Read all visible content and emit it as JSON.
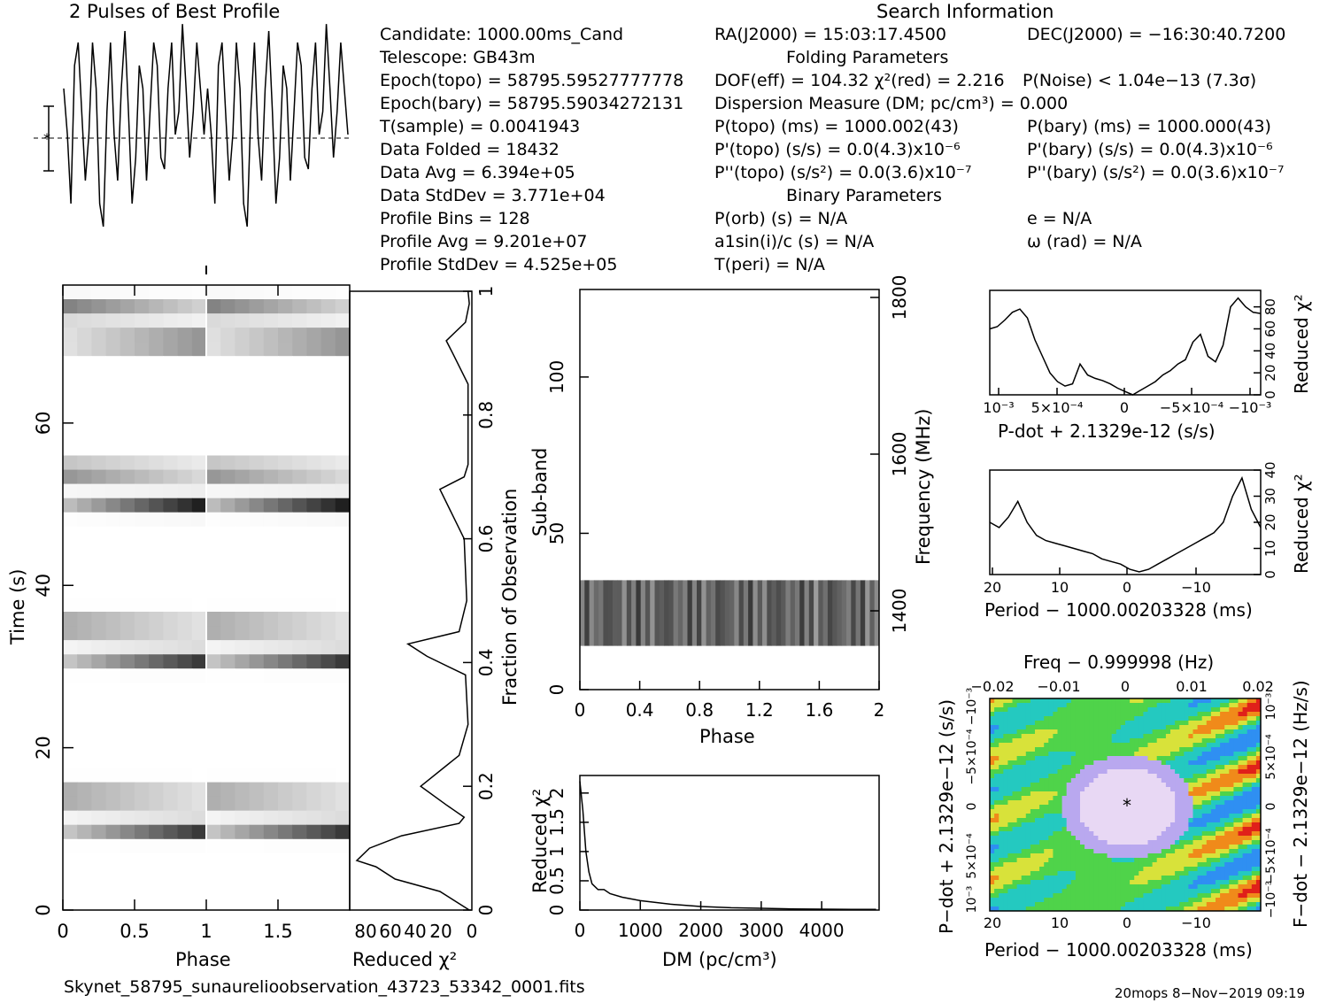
{
  "profile_title": "2 Pulses of Best Profile",
  "search_title": "Search Information",
  "info_left": [
    "Candidate:  1000.00ms_Cand",
    "Telescope:  GB43m",
    "Epoch(topo) = 58795.59527777778",
    "Epoch(bary) = 58795.59034272131",
    "T(sample)        =  0.0041943",
    "Data Folded      =  18432",
    "Data Avg         =  6.394e+05",
    "Data StdDev      =  3.771e+04",
    "Profile Bins     =  128",
    "Profile Avg      =  9.201e+07",
    "Profile StdDev   =  4.525e+05"
  ],
  "info_mid": [
    "RA(J2000) = 15:03:17.4500",
    "Folding Parameters",
    "DOF(eff) = 104.32   χ²(red) = 2.216",
    "Dispersion Measure (DM; pc/cm³) = 0.000",
    "P(topo) (ms) =  1000.002(43)",
    "P'(topo) (s/s) = 0.0(4.3)x10⁻⁶",
    "P''(topo) (s/s²) = 0.0(3.6)x10⁻⁷",
    "Binary Parameters",
    "P(orb) (s) = N/A",
    "a1sin(i)/c (s) = N/A",
    "T(peri) = N/A"
  ],
  "info_right": [
    "DEC(J2000) = −16:30:40.7200",
    "P(Noise) < 1.04e−13  (7.3σ)",
    "P(bary) (ms) =  1000.000(43)",
    "P'(bary) (s/s) = 0.0(4.3)x10⁻⁶",
    "P''(bary) (s/s²) = 0.0(3.6)x10⁻⁷",
    "e = N/A",
    "ω (rad) = N/A"
  ],
  "footer_file": "Skynet_58795_sunaurelioobservation_43723_53342_0001.fits",
  "footer_credit": "20mops  8−Nov−2019 09:19",
  "colors": {
    "ink": "#000000",
    "gray_dark": "#202020"
  },
  "chart_data": [
    {
      "type": "line",
      "name_hint": "profile",
      "title": "2 Pulses of Best Profile",
      "x": "phase 0-2",
      "y_note": "normalized profile intensity",
      "values": [
        0.7,
        0.5,
        0.2,
        0.8,
        0.9,
        0.6,
        0.3,
        0.5,
        0.9,
        0.7,
        0.2,
        0.1,
        0.6,
        0.9,
        0.5,
        0.3,
        0.7,
        0.95,
        0.6,
        0.2,
        0.4,
        0.8,
        0.7,
        0.3,
        0.6,
        0.9,
        0.8,
        0.4,
        0.35,
        0.7,
        0.9,
        0.5,
        0.6,
        0.98,
        0.7,
        0.4,
        0.6,
        0.9,
        0.7,
        0.5
      ]
    },
    {
      "type": "heatmap",
      "title": "",
      "xlabel": "Phase",
      "ylabel": "Time (s)",
      "xticks": [
        "0",
        "0.5",
        "1",
        "1.5"
      ],
      "yticks": [
        "0",
        "20",
        "40",
        "60"
      ],
      "xlim": [
        0,
        2
      ],
      "ylim": [
        0,
        77
      ],
      "pulses": [
        {
          "time_center": 12.5,
          "phase": 0.1
        },
        {
          "time_center": 33.5,
          "phase": 0.2
        },
        {
          "time_center": 52.5,
          "phase": 0.2
        },
        {
          "time_center": 72.5,
          "phase": 0.15
        }
      ]
    },
    {
      "type": "line",
      "title": "",
      "xlabel": "Reduced χ²",
      "ylabel": "Fraction of Observation",
      "xticks": [
        "80",
        "60",
        "40",
        "20",
        "0"
      ],
      "yticks": [
        "0",
        "0.2",
        "0.4",
        "0.6",
        "0.8",
        "1"
      ],
      "x": [
        2,
        25,
        60,
        75,
        90,
        80,
        55,
        10,
        6,
        20,
        40,
        10,
        3,
        5,
        35,
        50,
        10,
        4,
        6,
        25,
        6,
        3,
        3,
        15,
        20,
        5,
        2,
        3
      ],
      "y": [
        0,
        0.03,
        0.05,
        0.07,
        0.08,
        0.1,
        0.12,
        0.14,
        0.15,
        0.17,
        0.2,
        0.25,
        0.3,
        0.38,
        0.41,
        0.43,
        0.45,
        0.5,
        0.6,
        0.68,
        0.7,
        0.72,
        0.85,
        0.9,
        0.92,
        0.95,
        0.98,
        1.0
      ]
    },
    {
      "type": "heatmap",
      "title": "",
      "xlabel": "Phase",
      "ylabel": "Sub-band",
      "right_label": "Frequency (MHz)",
      "xticks": [
        "0",
        "0.4",
        "0.8",
        "1.2",
        "1.6",
        "2"
      ],
      "yticks": [
        "0",
        "50",
        "100"
      ],
      "right_ticks": [
        "1400",
        "1600",
        "1800"
      ],
      "xlim": [
        0,
        2
      ],
      "ylim": [
        0,
        128
      ],
      "band_rows": [
        14,
        35
      ]
    },
    {
      "type": "line",
      "title": "",
      "xlabel": "DM (pc/cm³)",
      "ylabel": "Reduced χ²",
      "xticks": [
        "0",
        "1000",
        "2000",
        "3000",
        "4000"
      ],
      "yticks": [
        "0",
        "0.5",
        "1",
        "1.5",
        "2"
      ],
      "x": [
        0,
        50,
        100,
        150,
        200,
        300,
        400,
        500,
        700,
        1000,
        1500,
        2000,
        2500,
        3000,
        3500,
        4000,
        4500,
        4900
      ],
      "y": [
        2.2,
        1.7,
        1.0,
        0.65,
        0.45,
        0.35,
        0.35,
        0.28,
        0.22,
        0.16,
        0.1,
        0.06,
        0.04,
        0.03,
        0.02,
        0.015,
        0.01,
        0.01
      ]
    },
    {
      "type": "line",
      "title": "",
      "xlabel": "P-dot + 2.1329e-12 (s/s)",
      "ylabel": "Reduced χ²",
      "xticks": [
        "10⁻³",
        "5×10⁻⁴",
        "0",
        "−5×10⁻⁴",
        "−10⁻³"
      ],
      "yticks": [
        "0",
        "20",
        "40",
        "60",
        "80"
      ],
      "values": [
        60,
        62,
        68,
        75,
        78,
        70,
        50,
        35,
        20,
        12,
        8,
        10,
        28,
        18,
        15,
        13,
        10,
        6,
        3,
        0,
        4,
        8,
        12,
        18,
        22,
        28,
        32,
        48,
        55,
        35,
        30,
        45,
        80,
        88,
        80,
        75,
        74
      ]
    },
    {
      "type": "line",
      "title": "",
      "xlabel": "Period − 1000.00203328 (ms)",
      "ylabel": "Reduced χ²",
      "xticks": [
        "20",
        "10",
        "0",
        "−10"
      ],
      "yticks": [
        "0",
        "10",
        "20",
        "30",
        "40"
      ],
      "values": [
        20,
        18,
        22,
        28,
        20,
        15,
        13,
        12,
        11,
        10,
        9,
        8,
        6,
        5,
        4,
        2,
        1,
        2,
        4,
        6,
        8,
        10,
        12,
        14,
        16,
        20,
        30,
        37,
        25,
        18
      ]
    },
    {
      "type": "heatmap",
      "title": "Freq − 0.999998 (Hz)",
      "xlabel": "Period − 1000.00203328 (ms)",
      "ylabel": "P−dot + 2.1329e−12 (s/s)",
      "right_label": "F−dot − 2.1329e−12 (Hz/s)",
      "xticks": [
        "20",
        "10",
        "0",
        "−10"
      ],
      "top_ticks": [
        "−0.02",
        "−0.01",
        "0",
        "0.01",
        "0.02"
      ],
      "yticks": [
        "10⁻³",
        "5×10⁻⁴",
        "0",
        "−5×10⁻⁴",
        "−10⁻³"
      ],
      "right_ticks": [
        "−10⁻³",
        "−5×10⁻⁴",
        "0",
        "5×10⁻⁴",
        "10⁻³"
      ]
    }
  ]
}
